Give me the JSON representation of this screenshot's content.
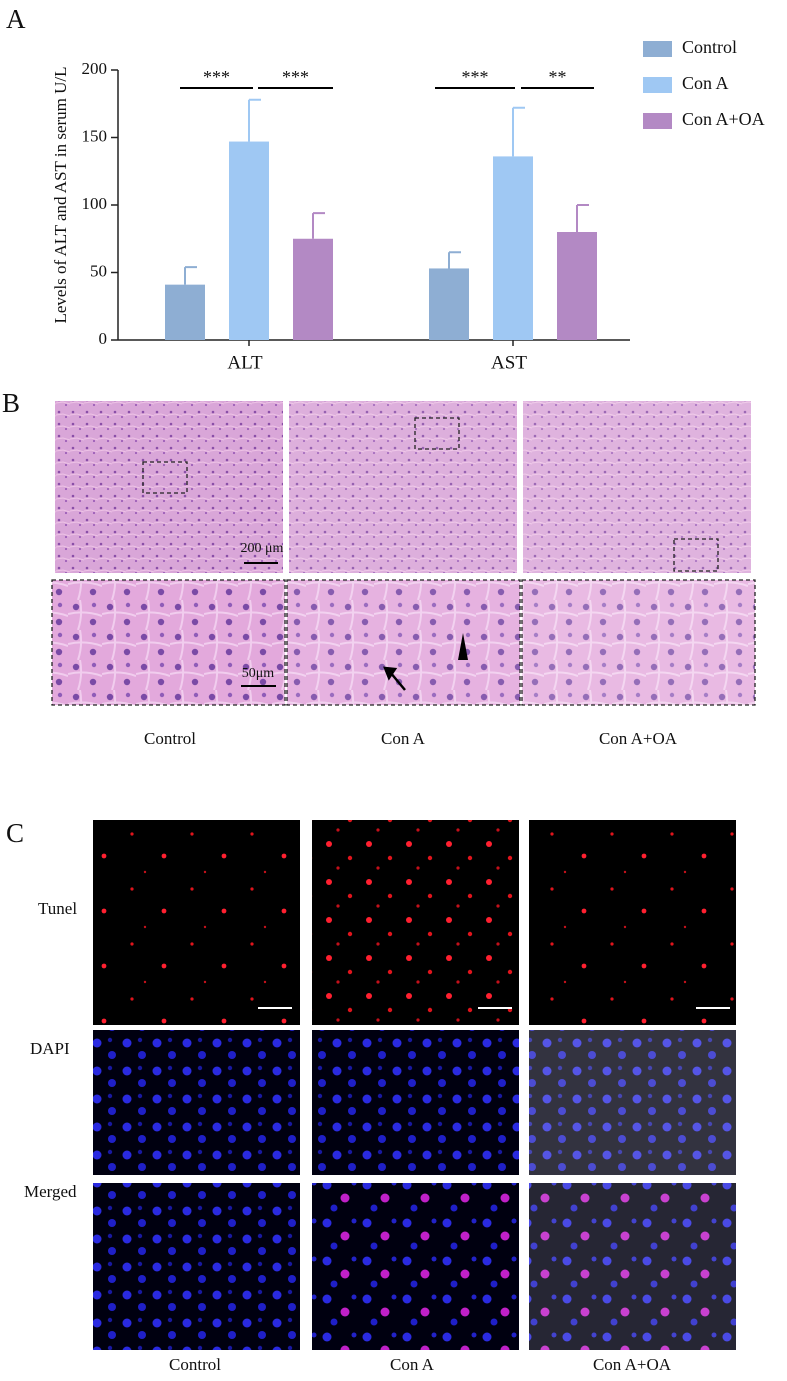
{
  "chart_data": {
    "type": "bar",
    "ylabel": "Levels of ALT and AST in serum U/L",
    "categories": [
      "ALT",
      "AST"
    ],
    "series": [
      {
        "name": "Control",
        "color": "#8eaed3",
        "values": [
          41,
          53
        ],
        "errors": [
          13,
          12
        ]
      },
      {
        "name": "Con A",
        "color": "#9fc8f3",
        "values": [
          147,
          136
        ],
        "errors": [
          31,
          36
        ]
      },
      {
        "name": "Con A+OA",
        "color": "#b389c4",
        "values": [
          75,
          80
        ],
        "errors": [
          19,
          20
        ]
      }
    ],
    "ylim": [
      0,
      200
    ],
    "yticks": [
      0,
      50,
      100,
      150,
      200
    ],
    "legend": "right",
    "annotations": [
      "***",
      "***",
      "***",
      "**"
    ]
  },
  "panel_labels": [
    "A",
    "B",
    "C"
  ],
  "histology": {
    "groups": [
      "Control",
      "Con A",
      "Con A+OA"
    ],
    "scale_bars": [
      "200 μm",
      "50μm"
    ]
  },
  "fluorescence": {
    "rows": [
      "Tunel",
      "DAPI",
      "Merged"
    ],
    "groups": [
      "Control",
      "Con A",
      "Con A+OA"
    ]
  }
}
